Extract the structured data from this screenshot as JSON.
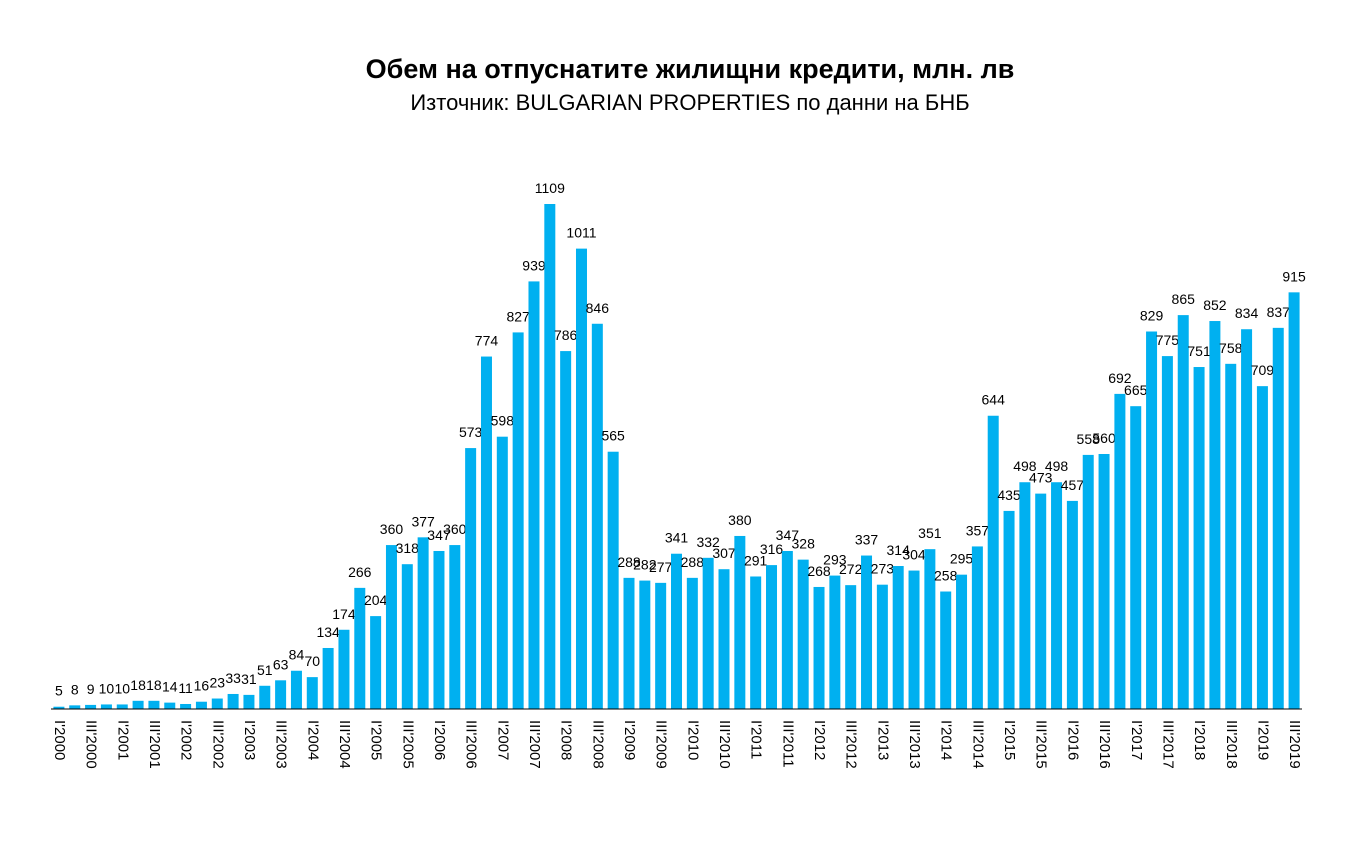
{
  "chart_data": {
    "type": "bar",
    "title": "Обем на отпуснатите жилищни кредити, млн. лв",
    "subtitle": "Източник: BULGARIAN PROPERTIES по данни на БНБ",
    "color": "#00b0f0",
    "categories": [
      "I'2000",
      null,
      "III'2000",
      null,
      "I'2001",
      null,
      "III'2001",
      null,
      "I'2002",
      null,
      "III'2002",
      null,
      "I'2003",
      null,
      "III'2003",
      null,
      "I'2004",
      null,
      "III'2004",
      null,
      "I'2005",
      null,
      "III'2005",
      null,
      "I'2006",
      null,
      "III'2006",
      null,
      "I'2007",
      null,
      "III'2007",
      null,
      "I'2008",
      null,
      "III'2008",
      null,
      "I'2009",
      null,
      "III'2009",
      null,
      "I'2010",
      null,
      "III'2010",
      null,
      "I'2011",
      null,
      "III'2011",
      null,
      "I'2012",
      null,
      "III'2012",
      null,
      "I'2013",
      null,
      "III'2013",
      null,
      "I'2014",
      null,
      "III'2014",
      null,
      "I'2015",
      null,
      "III'2015",
      null,
      "I'2016",
      null,
      "III'2016",
      null,
      "I'2017",
      null,
      "III'2017",
      null,
      "I'2018",
      null,
      "III'2018",
      null,
      "I'2019",
      null,
      "III'2019"
    ],
    "values": [
      5,
      8,
      9,
      10,
      10,
      18,
      18,
      14,
      11,
      16,
      23,
      33,
      31,
      51,
      63,
      84,
      70,
      134,
      174,
      266,
      204,
      360,
      318,
      377,
      347,
      360,
      573,
      774,
      598,
      827,
      939,
      1109,
      786,
      1011,
      846,
      565,
      288,
      282,
      277,
      341,
      288,
      332,
      307,
      380,
      291,
      316,
      347,
      328,
      268,
      293,
      272,
      337,
      273,
      314,
      304,
      351,
      258,
      295,
      357,
      644,
      435,
      498,
      473,
      498,
      457,
      558,
      560,
      692,
      665,
      829,
      775,
      865,
      751,
      852,
      758,
      834,
      709,
      837,
      915
    ]
  }
}
